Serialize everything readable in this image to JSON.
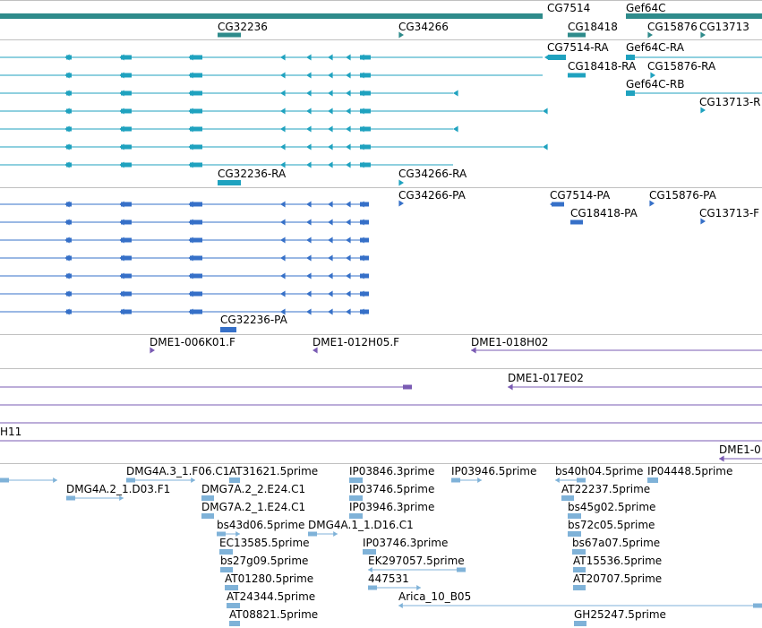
{
  "colors": {
    "gene": "#2e8b8b",
    "transcript": "#1fa2bf",
    "protein": "#3670c8",
    "clone": "#7a5bb3",
    "est": "#7fb2d8",
    "divider": "#c0c0c0"
  },
  "labels": {
    "gene": [
      "CG7514",
      "Gef64C",
      "CG32236",
      "CG34266",
      "CG18418",
      "CG15876",
      "CG13713"
    ],
    "transcript": [
      "CG7514-RA",
      "Gef64C-RA",
      "CG18418-RA",
      "CG15876-RA",
      "Gef64C-RB",
      "CG13713-R",
      "CG32236-RA",
      "CG34266-RA"
    ],
    "protein": [
      "CG34266-PA",
      "CG7514-PA",
      "CG15876-PA",
      "CG18418-PA",
      "CG13713-F",
      "CG32236-PA"
    ],
    "clone": [
      "DME1-006K01.F",
      "DME1-012H05.F",
      "DME1-018H02",
      "DME1-017E02",
      "H11",
      "DME1-0"
    ],
    "est": [
      "DMG4A.3_1.F06.C1",
      "AT31621.5prime",
      "IP03846.3prime",
      "IP03946.5prime",
      "bs40h04.5prime",
      "IP04448.5prime",
      "DMG4A.2_1.D03.F1",
      "DMG7A.2_2.E24.C1",
      "IP03746.5prime",
      "AT22237.5prime",
      "DMG7A.2_1.E24.C1",
      "IP03946.3prime",
      "bs45g02.5prime",
      "bs43d06.5prime",
      "DMG4A.1_1.D16.C1",
      "bs72c05.5prime",
      "EC13585.5prime",
      "IP03746.3prime",
      "bs67a07.5prime",
      "bs27g09.5prime",
      "EK297057.5prime",
      "AT15536.5prime",
      "AT01280.5prime",
      "447531",
      "AT20707.5prime",
      "AT24344.5prime",
      "Arica_10_B05",
      "AT08821.5prime",
      "GH25247.5prime"
    ]
  }
}
